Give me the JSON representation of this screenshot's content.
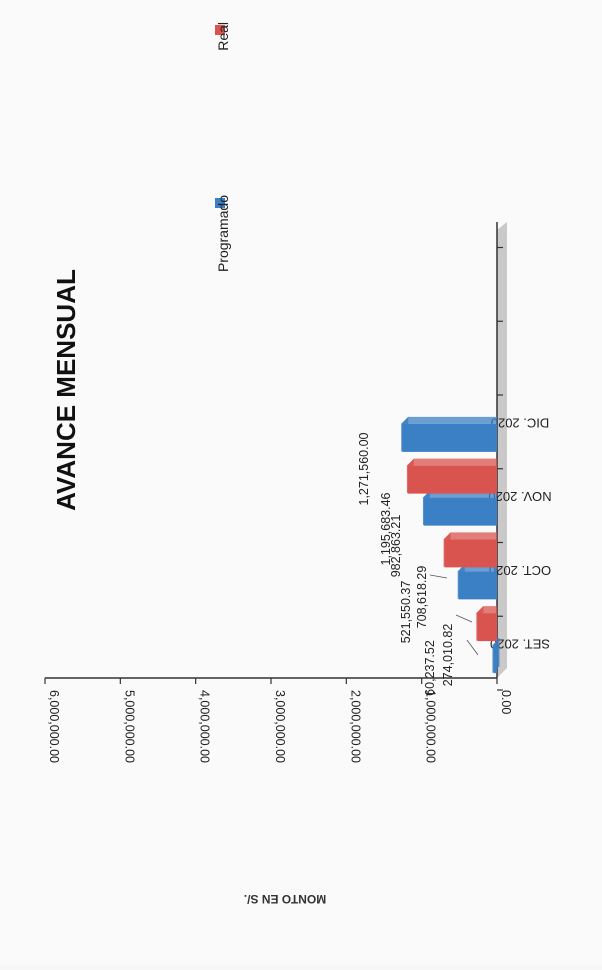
{
  "chart_data": {
    "type": "bar",
    "title": "AVANCE MENSUAL",
    "ylabel": "MONTO EN S/.",
    "xlabel": "",
    "categories": [
      "SET. 2020",
      "OCT. 2020",
      "NOV. 2020",
      "DIC. 2020"
    ],
    "series": [
      {
        "name": "Programado",
        "values": [
          60237.52,
          521550.37,
          982863.21,
          1271560.0
        ],
        "color": "#3b7fc4"
      },
      {
        "name": "Real",
        "values": [
          274010.82,
          708618.29,
          1195683.46,
          null
        ],
        "color": "#d9534f"
      }
    ],
    "value_labels": [
      [
        "60,237.52",
        "521,550.37",
        "982,863.21",
        "1,271,560.00"
      ],
      [
        "274,010.82",
        "708,618.29",
        "1,195,683.46",
        ""
      ]
    ],
    "yticks": [
      "0.00",
      "1,000,000.00",
      "2,000,000.00",
      "3,000,000.00",
      "4,000,000.00",
      "5,000,000.00",
      "6,000,000.00"
    ],
    "ylim": [
      0,
      6000000
    ],
    "legend_position": "top",
    "three_d": true,
    "orientation": "rotated-90"
  }
}
